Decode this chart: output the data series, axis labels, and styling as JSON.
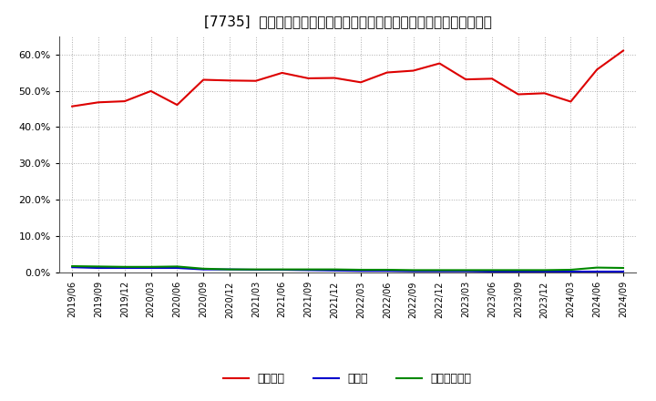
{
  "title": "[7735]  自己資本、のれん、繰延税金資産の総資産に対する比率の推移",
  "x_labels": [
    "2019/06",
    "2019/09",
    "2019/12",
    "2020/03",
    "2020/06",
    "2020/09",
    "2020/12",
    "2021/03",
    "2021/06",
    "2021/09",
    "2021/12",
    "2022/03",
    "2022/06",
    "2022/09",
    "2022/12",
    "2023/03",
    "2023/06",
    "2023/09",
    "2023/12",
    "2024/03",
    "2024/06",
    "2024/09"
  ],
  "jikoshihon": [
    0.457,
    0.468,
    0.471,
    0.499,
    0.461,
    0.53,
    0.528,
    0.527,
    0.549,
    0.534,
    0.535,
    0.523,
    0.55,
    0.555,
    0.575,
    0.531,
    0.533,
    0.49,
    0.493,
    0.47,
    0.558,
    0.61
  ],
  "noren": [
    0.015,
    0.013,
    0.013,
    0.013,
    0.013,
    0.009,
    0.009,
    0.008,
    0.008,
    0.007,
    0.006,
    0.005,
    0.005,
    0.004,
    0.004,
    0.004,
    0.003,
    0.003,
    0.003,
    0.003,
    0.003,
    0.003
  ],
  "kurinobezeikin": [
    0.018,
    0.017,
    0.016,
    0.016,
    0.017,
    0.011,
    0.009,
    0.009,
    0.009,
    0.009,
    0.009,
    0.008,
    0.008,
    0.007,
    0.007,
    0.007,
    0.007,
    0.007,
    0.007,
    0.008,
    0.014,
    0.013
  ],
  "jikoshihon_color": "#dd0000",
  "noren_color": "#0000cc",
  "kurinobezeikin_color": "#008800",
  "legend_label_0": "自己資本",
  "legend_label_1": "のれん",
  "legend_label_2": "繰延税金資産",
  "ylim_min": 0.0,
  "ylim_max": 0.65,
  "yticks": [
    0.0,
    0.1,
    0.2,
    0.3,
    0.4,
    0.5,
    0.6
  ],
  "background_color": "#ffffff",
  "grid_color": "#999999",
  "title_fontsize": 11
}
